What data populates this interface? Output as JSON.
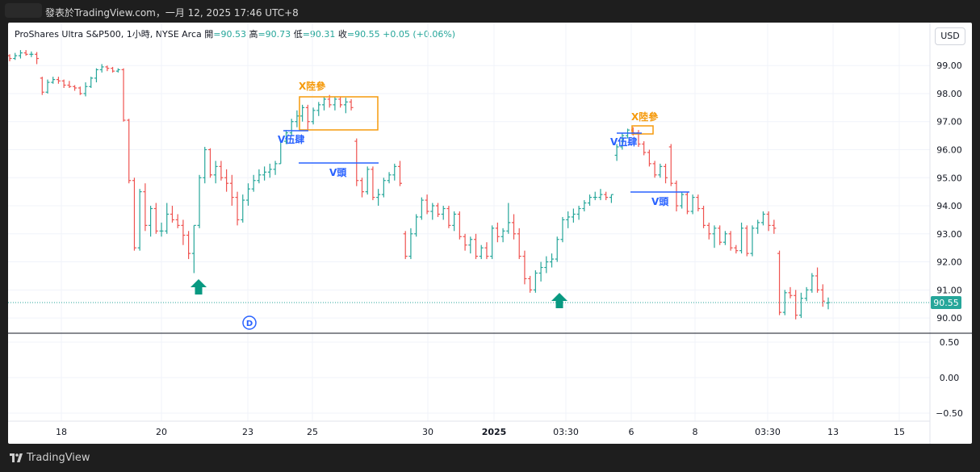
{
  "window": {
    "caption": "發表於TradingView.com，一月 12, 2025 17:46 UTC+8"
  },
  "legend": {
    "symbol": "ProShares Ultra S&P500, 1小時, NYSE Arca",
    "open_label": "開",
    "open_value": "=90.53",
    "high_label": "高",
    "high_value": "=90.73",
    "low_label": "低",
    "low_value": "=90.31",
    "close_label": "收",
    "close_value": "=90.55",
    "change": "+0.05 (+0.06%)"
  },
  "currency_button": "USD",
  "price_axis": {
    "labels": [
      "99.00",
      "98.00",
      "97.00",
      "96.00",
      "95.00",
      "94.00",
      "93.00",
      "92.00",
      "91.00",
      "90.00"
    ],
    "current_price": "90.55"
  },
  "indicator_axis": {
    "labels": [
      "0.50",
      "0.00",
      "−0.50"
    ]
  },
  "time_axis": {
    "labels": [
      "18",
      "20",
      "23",
      "25",
      "30",
      "2025",
      "03:30",
      "6",
      "8",
      "03:30",
      "13",
      "15"
    ]
  },
  "annotations": {
    "x_land_3_a": "X陸參",
    "v_wu_si_a": "V伍肆",
    "v_head_a": "V頭",
    "x_land_3_b": "X陸參",
    "v_wu_si_b": "V伍肆",
    "v_head_b": "V頭",
    "dividend_marker": "D"
  },
  "footer": {
    "brand": "TradingView"
  },
  "colors": {
    "up": "#26a69a",
    "down": "#ef5350",
    "annotation_orange": "#f59a0c",
    "annotation_blue": "#2962ff",
    "arrow": "#089981"
  },
  "chart_data": {
    "type": "ohlc",
    "title": "ProShares Ultra S&P500, 1小時, NYSE Arca",
    "ylim": [
      89.6,
      100.3
    ],
    "grid": true,
    "bars": [
      [
        99.35,
        99.4,
        99.15,
        99.25
      ],
      [
        99.25,
        99.45,
        99.2,
        99.35
      ],
      [
        99.35,
        99.55,
        99.25,
        99.45
      ],
      [
        99.45,
        99.55,
        99.35,
        99.4
      ],
      [
        99.4,
        99.5,
        99.3,
        99.4
      ],
      [
        99.4,
        99.48,
        99.05,
        99.25
      ],
      [
        98.55,
        98.6,
        97.95,
        98.05
      ],
      [
        98.05,
        98.5,
        98.0,
        98.4
      ],
      [
        98.4,
        98.6,
        98.35,
        98.5
      ],
      [
        98.5,
        98.6,
        98.35,
        98.45
      ],
      [
        98.45,
        98.5,
        98.2,
        98.3
      ],
      [
        98.3,
        98.45,
        98.2,
        98.25
      ],
      [
        98.25,
        98.3,
        98.1,
        98.2
      ],
      [
        98.2,
        98.25,
        97.95,
        98.0
      ],
      [
        98.0,
        98.4,
        97.9,
        98.25
      ],
      [
        98.25,
        98.6,
        98.2,
        98.55
      ],
      [
        98.55,
        98.9,
        98.4,
        98.85
      ],
      [
        98.85,
        99.05,
        98.75,
        98.95
      ],
      [
        98.95,
        99.0,
        98.8,
        98.9
      ],
      [
        98.9,
        98.95,
        98.75,
        98.8
      ],
      [
        98.8,
        98.9,
        98.75,
        98.85
      ],
      [
        98.85,
        98.9,
        97.0,
        97.05
      ],
      [
        97.05,
        97.1,
        94.8,
        94.9
      ],
      [
        94.9,
        95.0,
        92.4,
        92.5
      ],
      [
        92.5,
        94.6,
        92.4,
        94.5
      ],
      [
        94.5,
        94.8,
        93.1,
        93.3
      ],
      [
        93.3,
        94.0,
        92.9,
        93.9
      ],
      [
        93.9,
        94.1,
        93.0,
        93.1
      ],
      [
        93.1,
        93.4,
        92.9,
        93.1
      ],
      [
        93.1,
        94.1,
        93.0,
        93.7
      ],
      [
        93.7,
        94.0,
        93.4,
        93.5
      ],
      [
        93.5,
        93.7,
        93.2,
        93.3
      ],
      [
        93.3,
        93.5,
        92.6,
        92.95
      ],
      [
        92.95,
        93.1,
        92.1,
        92.3
      ],
      [
        92.3,
        93.3,
        91.6,
        93.3
      ],
      [
        93.3,
        95.1,
        93.2,
        95.0
      ],
      [
        95.0,
        96.1,
        94.8,
        96.0
      ],
      [
        96.0,
        96.05,
        95.0,
        95.1
      ],
      [
        95.1,
        95.6,
        94.8,
        95.4
      ],
      [
        95.4,
        95.6,
        94.9,
        95.0
      ],
      [
        95.0,
        95.3,
        94.5,
        94.8
      ],
      [
        94.8,
        95.1,
        94.0,
        94.3
      ],
      [
        94.3,
        94.5,
        93.3,
        93.5
      ],
      [
        93.5,
        94.4,
        93.4,
        94.2
      ],
      [
        94.2,
        94.8,
        94.0,
        94.6
      ],
      [
        94.6,
        95.1,
        94.5,
        94.9
      ],
      [
        94.9,
        95.3,
        94.8,
        95.1
      ],
      [
        95.1,
        95.4,
        94.9,
        95.2
      ],
      [
        95.2,
        95.5,
        95.0,
        95.3
      ],
      [
        95.3,
        95.6,
        95.1,
        95.5
      ],
      [
        95.5,
        96.3,
        95.5,
        96.3
      ],
      [
        96.3,
        96.7,
        96.2,
        96.6
      ],
      [
        96.6,
        97.1,
        96.5,
        97.0
      ],
      [
        97.0,
        97.4,
        96.8,
        97.2
      ],
      [
        97.2,
        97.6,
        97.0,
        97.5
      ],
      [
        97.5,
        97.6,
        96.7,
        97.0
      ],
      [
        97.0,
        97.5,
        96.9,
        97.4
      ],
      [
        97.4,
        97.7,
        97.2,
        97.6
      ],
      [
        97.6,
        97.9,
        97.4,
        97.8
      ],
      [
        97.8,
        97.95,
        97.5,
        97.6
      ],
      [
        97.6,
        97.9,
        97.4,
        97.8
      ],
      [
        97.8,
        97.9,
        97.5,
        97.6
      ],
      [
        97.6,
        97.85,
        97.3,
        97.7
      ],
      [
        97.7,
        97.8,
        97.4,
        97.5
      ],
      [
        96.3,
        96.4,
        94.7,
        94.9
      ],
      [
        94.9,
        95.0,
        94.3,
        94.5
      ],
      [
        94.5,
        95.4,
        94.4,
        95.3
      ],
      [
        95.3,
        95.4,
        94.2,
        94.3
      ],
      [
        94.3,
        94.6,
        94.0,
        94.4
      ],
      [
        94.4,
        95.0,
        94.3,
        94.9
      ],
      [
        94.9,
        95.2,
        94.8,
        95.1
      ],
      [
        95.1,
        95.5,
        94.9,
        95.4
      ],
      [
        95.4,
        95.6,
        94.7,
        94.8
      ],
      [
        93.0,
        93.1,
        92.1,
        92.2
      ],
      [
        92.2,
        93.2,
        92.1,
        93.0
      ],
      [
        93.0,
        93.7,
        92.9,
        93.6
      ],
      [
        93.6,
        94.3,
        93.5,
        94.2
      ],
      [
        94.2,
        94.4,
        93.7,
        93.8
      ],
      [
        93.8,
        94.1,
        93.5,
        94.0
      ],
      [
        94.0,
        94.1,
        93.6,
        93.7
      ],
      [
        93.7,
        94.0,
        93.5,
        93.9
      ],
      [
        93.9,
        94.0,
        93.2,
        93.3
      ],
      [
        93.3,
        93.8,
        93.1,
        93.7
      ],
      [
        93.7,
        93.8,
        92.8,
        92.9
      ],
      [
        92.9,
        93.0,
        92.4,
        92.6
      ],
      [
        92.6,
        92.9,
        92.3,
        92.8
      ],
      [
        92.8,
        93.0,
        92.1,
        92.2
      ],
      [
        92.2,
        92.6,
        92.1,
        92.5
      ],
      [
        92.5,
        92.7,
        92.1,
        92.2
      ],
      [
        92.2,
        93.3,
        92.1,
        93.2
      ],
      [
        93.2,
        93.4,
        92.7,
        92.9
      ],
      [
        92.9,
        93.2,
        92.7,
        93.1
      ],
      [
        93.1,
        94.1,
        93.0,
        93.4
      ],
      [
        93.4,
        93.7,
        92.8,
        93.0
      ],
      [
        93.0,
        93.2,
        92.1,
        92.2
      ],
      [
        92.2,
        92.4,
        91.2,
        91.4
      ],
      [
        91.4,
        91.5,
        90.9,
        91.0
      ],
      [
        91.0,
        91.7,
        90.9,
        91.6
      ],
      [
        91.6,
        92.0,
        91.3,
        91.8
      ],
      [
        91.8,
        92.2,
        91.6,
        92.0
      ],
      [
        92.0,
        92.3,
        91.8,
        92.1
      ],
      [
        92.1,
        92.9,
        92.0,
        92.8
      ],
      [
        92.8,
        93.6,
        92.7,
        93.5
      ],
      [
        93.5,
        93.8,
        93.2,
        93.6
      ],
      [
        93.6,
        93.9,
        93.4,
        93.7
      ],
      [
        93.7,
        94.0,
        93.5,
        93.9
      ],
      [
        93.9,
        94.2,
        93.8,
        94.1
      ],
      [
        94.1,
        94.4,
        94.0,
        94.3
      ],
      [
        94.3,
        94.5,
        94.2,
        94.3
      ],
      [
        94.3,
        94.6,
        94.2,
        94.4
      ],
      [
        94.4,
        94.5,
        94.2,
        94.3
      ],
      [
        94.3,
        94.4,
        94.1,
        94.4
      ],
      [
        95.8,
        96.2,
        95.6,
        96.1
      ],
      [
        96.1,
        96.6,
        96.0,
        96.5
      ],
      [
        96.5,
        96.75,
        96.4,
        96.7
      ],
      [
        96.7,
        96.8,
        96.5,
        96.6
      ],
      [
        96.6,
        96.7,
        96.1,
        96.2
      ],
      [
        96.2,
        96.3,
        95.8,
        95.9
      ],
      [
        95.9,
        96.0,
        95.4,
        95.5
      ],
      [
        95.5,
        95.6,
        95.0,
        95.1
      ],
      [
        95.1,
        95.5,
        95.0,
        95.4
      ],
      [
        95.4,
        95.5,
        94.8,
        95.0
      ],
      [
        96.1,
        96.2,
        94.7,
        94.8
      ],
      [
        94.8,
        94.9,
        93.8,
        94.0
      ],
      [
        94.0,
        94.5,
        93.9,
        94.4
      ],
      [
        94.4,
        94.5,
        93.7,
        93.8
      ],
      [
        93.8,
        94.4,
        93.7,
        94.3
      ],
      [
        94.3,
        94.4,
        93.8,
        93.9
      ],
      [
        93.9,
        94.0,
        93.2,
        93.3
      ],
      [
        93.3,
        93.4,
        92.8,
        93.0
      ],
      [
        93.0,
        93.3,
        92.5,
        93.2
      ],
      [
        93.2,
        93.3,
        92.6,
        92.7
      ],
      [
        92.7,
        93.1,
        92.6,
        93.0
      ],
      [
        93.0,
        93.1,
        92.4,
        92.5
      ],
      [
        92.5,
        92.6,
        92.3,
        92.4
      ],
      [
        92.4,
        93.4,
        92.3,
        93.2
      ],
      [
        93.2,
        93.3,
        92.2,
        92.3
      ],
      [
        92.3,
        93.3,
        92.2,
        93.2
      ],
      [
        93.2,
        93.5,
        93.0,
        93.4
      ],
      [
        93.4,
        93.8,
        93.3,
        93.7
      ],
      [
        93.7,
        93.8,
        93.1,
        93.3
      ],
      [
        93.3,
        93.5,
        93.0,
        93.2
      ],
      [
        92.3,
        92.4,
        90.1,
        90.2
      ],
      [
        90.2,
        91.0,
        90.1,
        90.9
      ],
      [
        90.9,
        91.1,
        90.7,
        90.8
      ],
      [
        90.8,
        91.0,
        89.95,
        90.1
      ],
      [
        90.1,
        90.9,
        90.0,
        90.7
      ],
      [
        90.7,
        91.1,
        90.6,
        91.0
      ],
      [
        91.0,
        91.6,
        90.9,
        91.5
      ],
      [
        91.5,
        91.8,
        90.9,
        91.0
      ],
      [
        91.0,
        91.2,
        90.4,
        90.6
      ],
      [
        90.53,
        90.73,
        90.31,
        90.55
      ]
    ]
  }
}
